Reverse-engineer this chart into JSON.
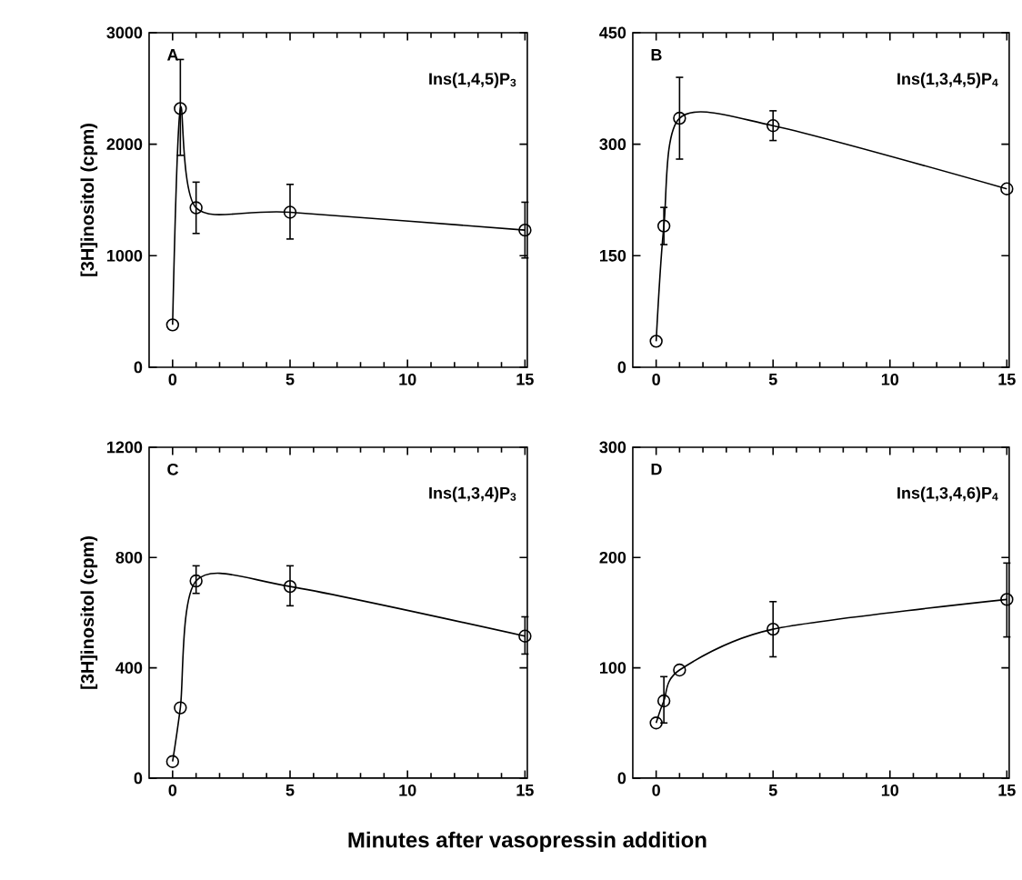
{
  "chart_data": [
    {
      "type": "line",
      "title": "A",
      "ylabel": "[3H]inositol  (cpm)",
      "annotations": [
        "Ins(1,4,5)P$_{3}$"
      ],
      "x": [
        0,
        0.33,
        1,
        5,
        15
      ],
      "marker": "circle",
      "xlim": [
        -1,
        15.1
      ],
      "xticks": [
        0,
        5,
        10,
        15
      ],
      "ylim": [
        0,
        3000
      ],
      "yticks": [
        0,
        1000,
        2000,
        3000
      ],
      "series": [
        {
          "color": "#000000",
          "values": [
            380,
            2320,
            1430,
            1390,
            1230
          ],
          "errors": [
            null,
            [
              1900,
              2760
            ],
            [
              1200,
              1660
            ],
            [
              1150,
              1640
            ],
            [
              980,
              1480
            ]
          ]
        }
      ]
    },
    {
      "type": "line",
      "title": "B",
      "annotations": [
        "Ins(1,3,4,5)P$_{4}$"
      ],
      "x": [
        0,
        0.33,
        1,
        5,
        15
      ],
      "marker": "circle",
      "xlim": [
        -1,
        15.1
      ],
      "xticks": [
        0,
        5,
        10,
        15
      ],
      "ylim": [
        0,
        450
      ],
      "yticks": [
        0,
        150,
        300,
        450
      ],
      "series": [
        {
          "color": "#000000",
          "values": [
            35,
            190,
            335,
            325,
            240
          ],
          "errors": [
            null,
            [
              165,
              215
            ],
            [
              280,
              390
            ],
            [
              305,
              345
            ],
            null
          ]
        }
      ]
    },
    {
      "type": "line",
      "title": "C",
      "ylabel": "[3H]inositol  (cpm)",
      "xlabel": "Minutes after vasopressin addition",
      "annotations": [
        "Ins(1,3,4)P$_{3}$"
      ],
      "x": [
        0,
        0.33,
        1,
        5,
        15
      ],
      "marker": "circle",
      "xlim": [
        -1,
        15.1
      ],
      "xticks": [
        0,
        5,
        10,
        15
      ],
      "ylim": [
        0,
        1200
      ],
      "yticks": [
        0,
        400,
        800,
        1200
      ],
      "series": [
        {
          "color": "#000000",
          "values": [
            60,
            255,
            715,
            695,
            515
          ],
          "errors": [
            null,
            null,
            [
              670,
              770
            ],
            [
              625,
              770
            ],
            [
              450,
              585
            ]
          ]
        }
      ]
    },
    {
      "type": "line",
      "title": "D",
      "annotations": [
        "Ins(1,3,4,6)P$_{4}$"
      ],
      "x": [
        0,
        0.33,
        1,
        5,
        15
      ],
      "marker": "circle",
      "xlim": [
        -1,
        15.1
      ],
      "xticks": [
        0,
        5,
        10,
        15
      ],
      "ylim": [
        0,
        300
      ],
      "yticks": [
        0,
        100,
        200,
        300
      ],
      "series": [
        {
          "color": "#000000",
          "values": [
            50,
            70,
            98,
            135,
            162
          ],
          "errors": [
            null,
            [
              50,
              92
            ],
            null,
            [
              110,
              160
            ],
            [
              128,
              195
            ]
          ]
        }
      ]
    }
  ]
}
